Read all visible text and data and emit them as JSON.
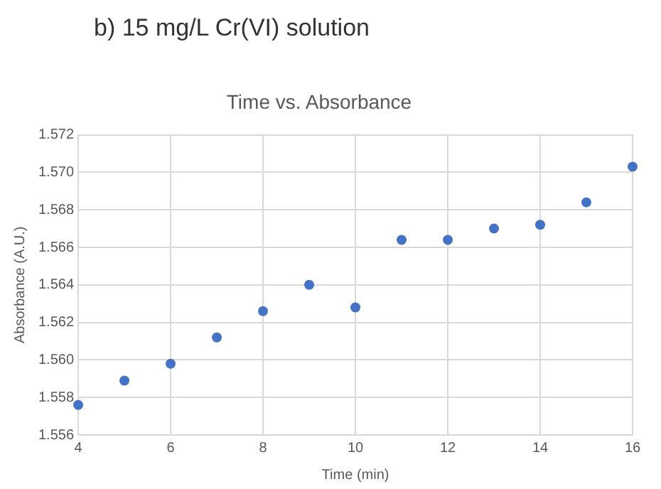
{
  "chart_data": {
    "type": "scatter",
    "title": "Time vs. Absorbance",
    "annotations": [
      "b) 15 mg/L Cr(VI) solution"
    ],
    "xlabel": "Time (min)",
    "ylabel": "Absorbance (A.U.)",
    "x": [
      4,
      5,
      6,
      7,
      8,
      9,
      10,
      11,
      12,
      13,
      14,
      15,
      16
    ],
    "series": [
      {
        "color": "#4472c4",
        "values": [
          1.5576,
          1.5589,
          1.5598,
          1.5612,
          1.5626,
          1.564,
          1.5628,
          1.5664,
          1.5664,
          1.567,
          1.5672,
          1.5684,
          1.5703
        ]
      }
    ],
    "xlim": [
      4,
      16
    ],
    "xticks": [
      4,
      6,
      8,
      10,
      12,
      14,
      16
    ],
    "ylim": [
      1.556,
      1.572
    ],
    "yticks": [
      {
        "value": 1.556,
        "label": "1.556"
      },
      {
        "value": 1.558,
        "label": "1.558"
      },
      {
        "value": 1.56,
        "label": "1.560"
      },
      {
        "value": 1.562,
        "label": "1.562"
      },
      {
        "value": 1.564,
        "label": "1.564"
      },
      {
        "value": 1.566,
        "label": "1.566"
      },
      {
        "value": 1.568,
        "label": "1.568"
      },
      {
        "value": 1.57,
        "label": "1.570"
      },
      {
        "value": 1.572,
        "label": "1.572"
      }
    ],
    "grid": true,
    "legend": false,
    "marker": "circle"
  }
}
